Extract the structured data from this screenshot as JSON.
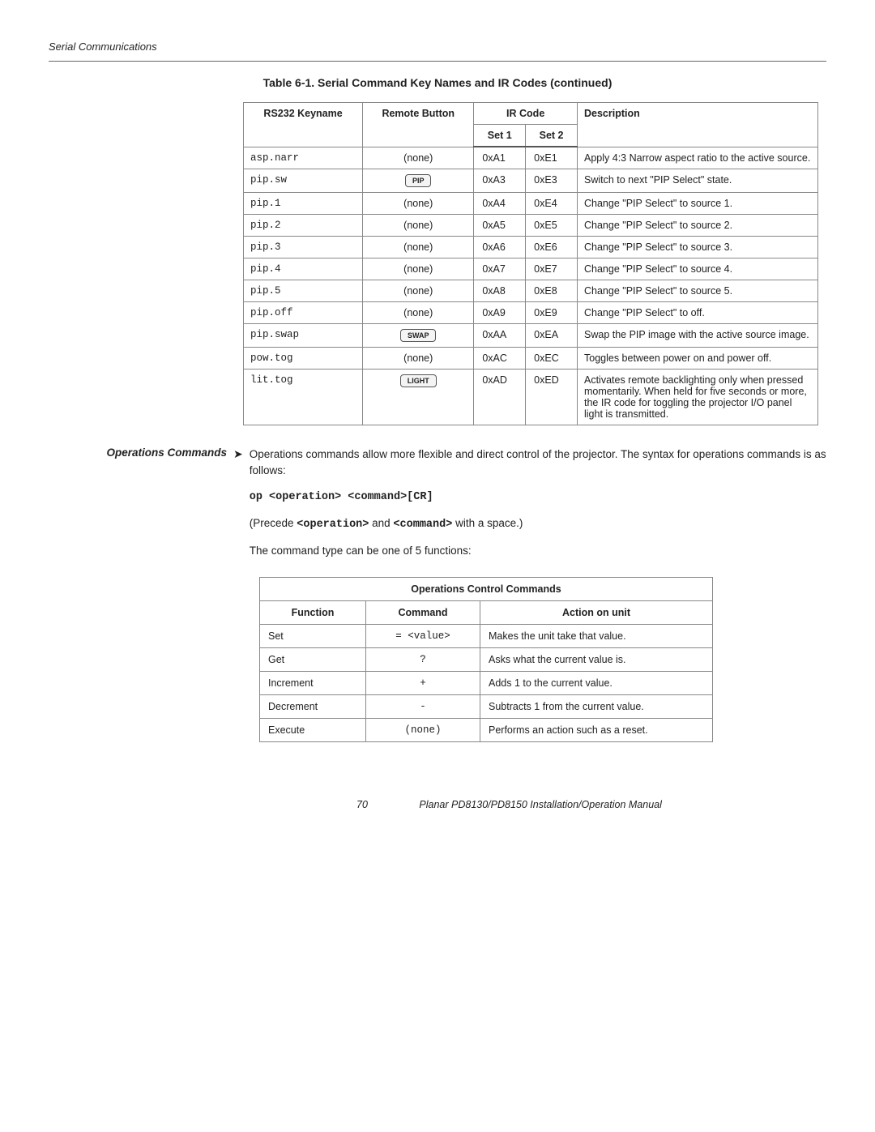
{
  "header": {
    "title": "Serial Communications"
  },
  "caption": "Table 6-1. Serial Command Key Names and IR Codes (continued)",
  "table1": {
    "headers": {
      "rs232": "RS232 Keyname",
      "remote": "Remote Button",
      "ircode": "IR Code",
      "set1": "Set 1",
      "set2": "Set 2",
      "desc": "Description"
    },
    "rows": [
      {
        "key": "asp.narr",
        "remote_type": "text",
        "remote": "(none)",
        "s1": "0xA1",
        "s2": "0xE1",
        "desc": "Apply 4:3 Narrow aspect ratio to the active source."
      },
      {
        "key": "pip.sw",
        "remote_type": "chip",
        "remote": "PIP",
        "s1": "0xA3",
        "s2": "0xE3",
        "desc": "Switch to next \"PIP Select\" state."
      },
      {
        "key": "pip.1",
        "remote_type": "text",
        "remote": "(none)",
        "s1": "0xA4",
        "s2": "0xE4",
        "desc": "Change \"PIP Select\" to source 1."
      },
      {
        "key": "pip.2",
        "remote_type": "text",
        "remote": "(none)",
        "s1": "0xA5",
        "s2": "0xE5",
        "desc": "Change \"PIP Select\" to source 2."
      },
      {
        "key": "pip.3",
        "remote_type": "text",
        "remote": "(none)",
        "s1": "0xA6",
        "s2": "0xE6",
        "desc": "Change \"PIP Select\" to source 3."
      },
      {
        "key": "pip.4",
        "remote_type": "text",
        "remote": "(none)",
        "s1": "0xA7",
        "s2": "0xE7",
        "desc": "Change \"PIP Select\" to source 4."
      },
      {
        "key": "pip.5",
        "remote_type": "text",
        "remote": "(none)",
        "s1": "0xA8",
        "s2": "0xE8",
        "desc": "Change \"PIP Select\" to source 5."
      },
      {
        "key": "pip.off",
        "remote_type": "text",
        "remote": "(none)",
        "s1": "0xA9",
        "s2": "0xE9",
        "desc": "Change \"PIP Select\" to off."
      },
      {
        "key": "pip.swap",
        "remote_type": "chip",
        "remote": "SWAP",
        "s1": "0xAA",
        "s2": "0xEA",
        "desc": "Swap the PIP image with the active source image."
      },
      {
        "key": "pow.tog",
        "remote_type": "text",
        "remote": "(none)",
        "s1": "0xAC",
        "s2": "0xEC",
        "desc": "Toggles between power on and power off."
      },
      {
        "key": "lit.tog",
        "remote_type": "chip",
        "remote": "LIGHT",
        "s1": "0xAD",
        "s2": "0xED",
        "desc": "Activates remote backlighting only when pressed momentarily. When held for five seconds or more, the IR code for toggling the projector I/O panel light is transmitted."
      }
    ]
  },
  "ops_section": {
    "label": "Operations Commands",
    "para1": "Operations commands allow more flexible and direct control of the projector. The syntax for operations commands is as follows:",
    "syntax": "op <operation> <command>[CR]",
    "para2_pre": "(Precede ",
    "para2_m1": "<operation>",
    "para2_mid": " and ",
    "para2_m2": "<command>",
    "para2_post": " with a space.)",
    "para3": "The command type can be one of 5 functions:"
  },
  "table2": {
    "title": "Operations Control Commands",
    "headers": {
      "fn": "Function",
      "cmd": "Command",
      "act": "Action on unit"
    },
    "rows": [
      {
        "fn": "Set",
        "cmd": "= <value>",
        "act": "Makes the unit take that value."
      },
      {
        "fn": "Get",
        "cmd": "?",
        "act": "Asks what the current value is."
      },
      {
        "fn": "Increment",
        "cmd": "+",
        "act": "Adds 1 to the current value."
      },
      {
        "fn": "Decrement",
        "cmd": "-",
        "act": "Subtracts 1 from the current value."
      },
      {
        "fn": "Execute",
        "cmd": "(none)",
        "act": "Performs an action such as a reset."
      }
    ]
  },
  "footer": {
    "page": "70",
    "manual": "Planar PD8130/PD8150 Installation/Operation Manual"
  }
}
